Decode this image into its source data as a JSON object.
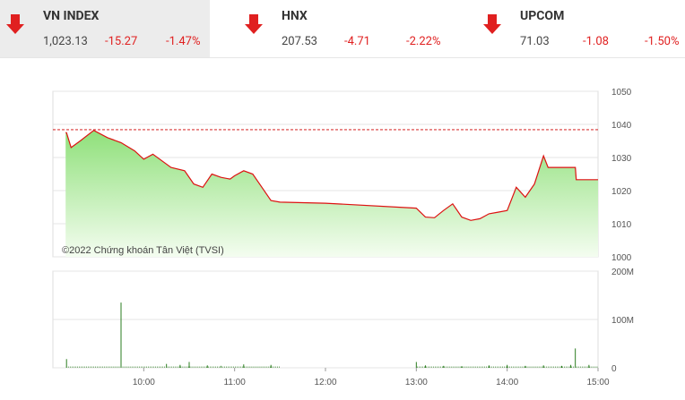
{
  "indices": [
    {
      "name": "VN INDEX",
      "value": "1,023.13",
      "change": "-15.27",
      "percent": "-1.47%",
      "active": true
    },
    {
      "name": "HNX",
      "value": "207.53",
      "change": "-4.71",
      "percent": "-2.22%",
      "active": false
    },
    {
      "name": "UPCOM",
      "value": "71.03",
      "change": "-1.08",
      "percent": "-1.50%",
      "active": false
    }
  ],
  "colors": {
    "down": "#e02020",
    "line": "#dd1111",
    "fill_top": "#8fe07a",
    "fill_bottom": "#f4fdf0",
    "volume": "#2a7d1f",
    "reference": "#cc0000"
  },
  "watermark": "©2022 Chứng khoán Tân Việt (TVSI)",
  "chart_data": {
    "type": "area",
    "price_axis": {
      "ticks": [
        "1050",
        "1040",
        "1030",
        "1020",
        "1010",
        "1000"
      ],
      "ylim": [
        1000,
        1050
      ]
    },
    "volume_axis": {
      "ticks": [
        "200M",
        "100M",
        "0"
      ],
      "ylim": [
        0,
        200
      ]
    },
    "time_ticks": [
      "10:00",
      "11:00",
      "12:00",
      "13:00",
      "14:00",
      "15:00"
    ],
    "reference_price": 1038.4,
    "price_series": [
      [
        9.15,
        1037.5
      ],
      [
        9.2,
        1033
      ],
      [
        9.3,
        1035
      ],
      [
        9.45,
        1038.2
      ],
      [
        9.6,
        1036
      ],
      [
        9.75,
        1034.5
      ],
      [
        9.9,
        1032
      ],
      [
        10.0,
        1029.5
      ],
      [
        10.1,
        1031
      ],
      [
        10.2,
        1029
      ],
      [
        10.3,
        1027
      ],
      [
        10.45,
        1026
      ],
      [
        10.55,
        1022
      ],
      [
        10.65,
        1021
      ],
      [
        10.75,
        1025
      ],
      [
        10.85,
        1024
      ],
      [
        10.95,
        1023.5
      ],
      [
        11.0,
        1024.5
      ],
      [
        11.1,
        1026
      ],
      [
        11.2,
        1025
      ],
      [
        11.3,
        1021
      ],
      [
        11.4,
        1017
      ],
      [
        11.5,
        1016.5
      ],
      [
        12.0,
        1016.2
      ],
      [
        13.0,
        1014.7
      ],
      [
        13.1,
        1012
      ],
      [
        13.2,
        1011.8
      ],
      [
        13.3,
        1014
      ],
      [
        13.4,
        1016
      ],
      [
        13.5,
        1012
      ],
      [
        13.6,
        1011
      ],
      [
        13.7,
        1011.5
      ],
      [
        13.8,
        1013
      ],
      [
        13.9,
        1013.5
      ],
      [
        14.0,
        1014
      ],
      [
        14.1,
        1021
      ],
      [
        14.2,
        1018
      ],
      [
        14.3,
        1022
      ],
      [
        14.4,
        1030.5
      ],
      [
        14.45,
        1027
      ],
      [
        14.5,
        1027
      ],
      [
        14.75,
        1027
      ],
      [
        14.76,
        1023.3
      ],
      [
        15.0,
        1023.3
      ]
    ],
    "volume_series": [
      [
        9.15,
        18
      ],
      [
        9.75,
        135
      ],
      [
        10.25,
        8
      ],
      [
        10.4,
        6
      ],
      [
        10.5,
        12
      ],
      [
        10.7,
        5
      ],
      [
        10.85,
        4
      ],
      [
        11.1,
        7
      ],
      [
        11.4,
        6
      ],
      [
        13.0,
        12
      ],
      [
        13.1,
        5
      ],
      [
        13.3,
        4
      ],
      [
        13.5,
        3
      ],
      [
        13.8,
        5
      ],
      [
        14.0,
        6
      ],
      [
        14.2,
        4
      ],
      [
        14.4,
        5
      ],
      [
        14.6,
        4
      ],
      [
        14.7,
        6
      ],
      [
        14.75,
        40
      ],
      [
        14.9,
        6
      ]
    ]
  }
}
